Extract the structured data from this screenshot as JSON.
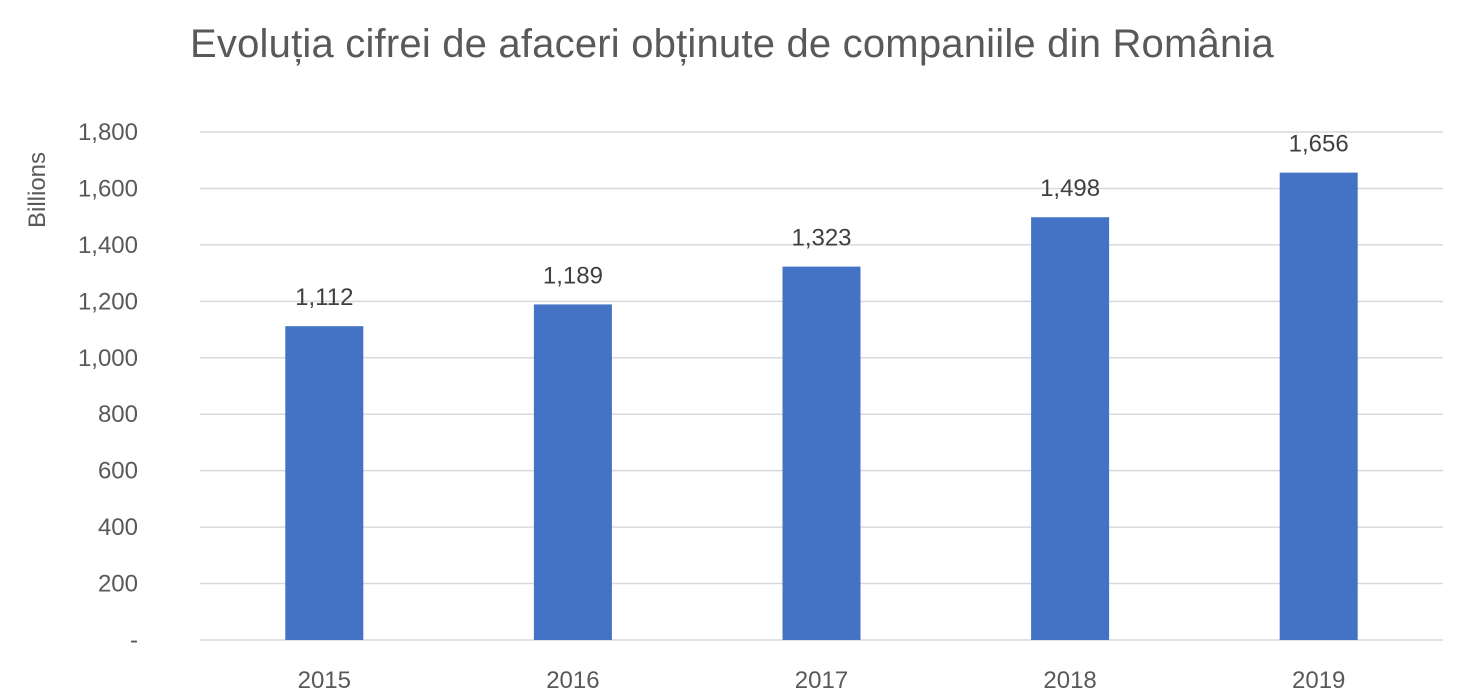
{
  "chart_data": {
    "type": "bar",
    "title": "Evoluția cifrei de afaceri obținute de companiile din România",
    "xlabel": "",
    "ylabel": "Billions",
    "categories": [
      "2015",
      "2016",
      "2017",
      "2018",
      "2019"
    ],
    "values": [
      1112,
      1189,
      1323,
      1498,
      1656
    ],
    "data_labels": [
      "1,112",
      "1,189",
      "1,323",
      "1,498",
      "1,656"
    ],
    "ylim": [
      0,
      1800
    ],
    "y_ticks": [
      0,
      200,
      400,
      600,
      800,
      1000,
      1200,
      1400,
      1600,
      1800
    ],
    "y_tick_labels": [
      "-",
      "200",
      "400",
      "600",
      "800",
      "1,000",
      "1,200",
      "1,400",
      "1,600",
      "1,800"
    ],
    "grid": true,
    "legend": "none",
    "bar_color": "#4472C4"
  }
}
